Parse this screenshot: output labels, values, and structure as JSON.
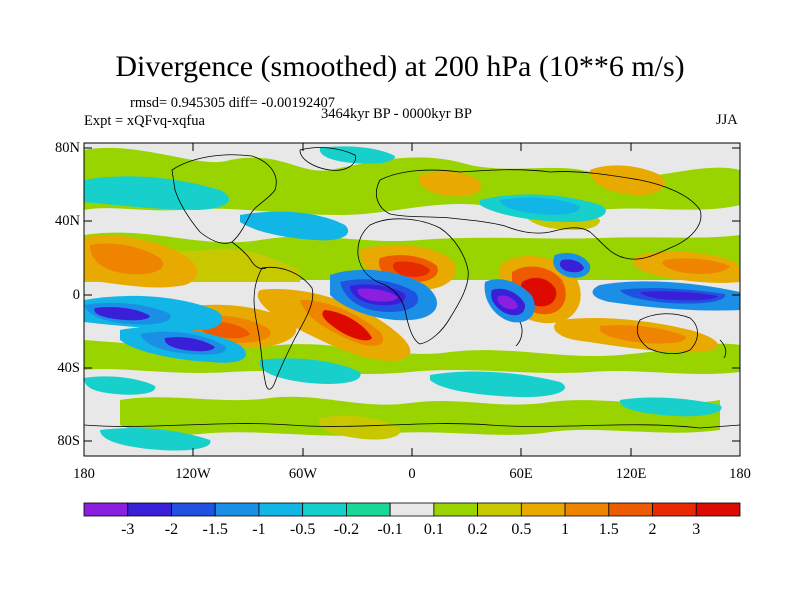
{
  "title": "Divergence (smoothed) at 200 hPa (10**6 m/s)",
  "rmsd_line": "rmsd= 0.945305 diff= -0.00192407",
  "period": "3464kyr BP - 0000kyr BP",
  "experiment": "Expt = xQFvq-xqfua",
  "season": "JJA",
  "map": {
    "y_ticks": [
      "80N",
      "40N",
      "0",
      "40S",
      "80S"
    ],
    "x_ticks": [
      "180",
      "120W",
      "60W",
      "0",
      "60E",
      "120E",
      "180"
    ]
  },
  "colorbar": {
    "labels": [
      "-3",
      "-2",
      "-1.5",
      "-1",
      "-0.5",
      "-0.2",
      "-0.1",
      "0.1",
      "0.2",
      "0.5",
      "1",
      "1.5",
      "2",
      "3"
    ],
    "colors": [
      "#8a1fe0",
      "#3a1fd8",
      "#1f52e0",
      "#1b8fe6",
      "#11b5e6",
      "#17d0cc",
      "#19d89a",
      "#e8e8e8",
      "#9ad400",
      "#c8c800",
      "#e8aa00",
      "#ee8400",
      "#ee5a00",
      "#e82a00",
      "#dd0a00"
    ]
  }
}
